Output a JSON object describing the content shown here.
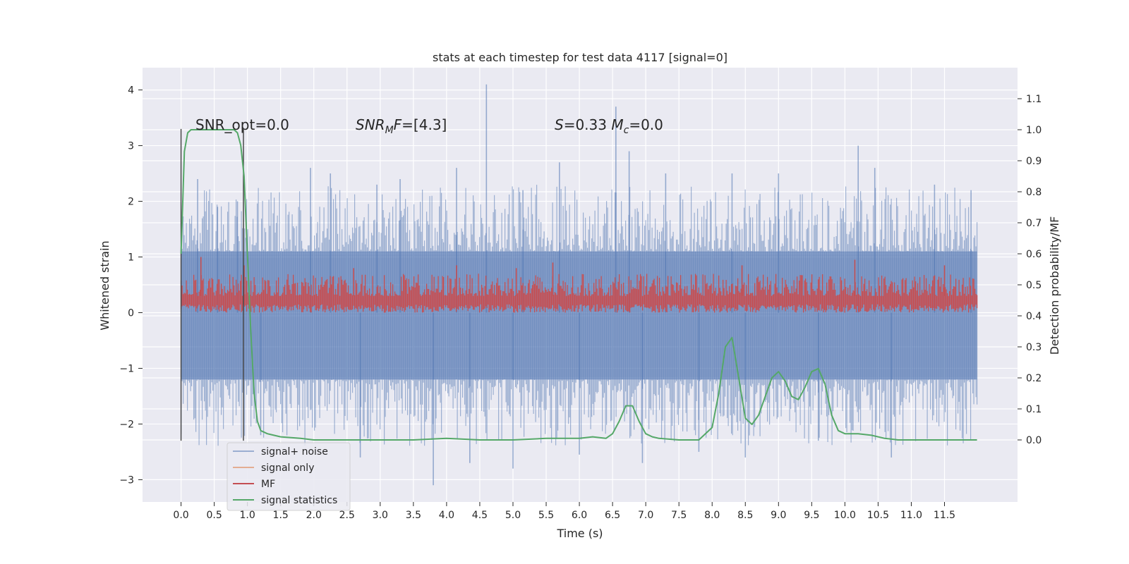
{
  "chart_data": {
    "type": "line",
    "title": "stats at each timestep for test data 4117 [signal=0]",
    "xlabel": "Time (s)",
    "ylabel": "Whitened strain",
    "ylabel_right": "Detection probability/MF",
    "xlim": [
      -0.58,
      12.6
    ],
    "ylim": [
      -3.4,
      4.4
    ],
    "ylim_right": [
      -0.2,
      1.2
    ],
    "x_ticks": [
      "0.0",
      "0.5",
      "1.0",
      "1.5",
      "2.0",
      "2.5",
      "3.0",
      "3.5",
      "4.0",
      "4.5",
      "5.0",
      "5.5",
      "6.0",
      "6.5",
      "7.0",
      "7.5",
      "8.0",
      "8.5",
      "9.0",
      "9.5",
      "10.0",
      "10.5",
      "11.0",
      "11.5"
    ],
    "y_ticks": [
      "−3",
      "−2",
      "−1",
      "0",
      "1",
      "2",
      "3",
      "4"
    ],
    "y_right_ticks": [
      "0.0",
      "0.1",
      "0.2",
      "0.3",
      "0.4",
      "0.5",
      "0.6",
      "0.7",
      "0.8",
      "0.9",
      "1.0",
      "1.1"
    ],
    "grid": true,
    "legend_position": "lower-left",
    "legend": [
      {
        "name": "signal+ noise",
        "color": "#4c72b0"
      },
      {
        "name": "signal only",
        "color": "#dd8452"
      },
      {
        "name": "MF",
        "color": "#c44e52"
      },
      {
        "name": "signal statistics",
        "color": "#55a868"
      }
    ],
    "annotations": [
      {
        "text": "SNR_opt=0.0",
        "x": 0.2,
        "y": 3.35
      },
      {
        "text": "SNR_MF=[4.3]",
        "x": 2.6,
        "y": 3.35
      },
      {
        "text": "S=0.33   M_c=0.0",
        "x": 5.6,
        "y": 3.35
      }
    ],
    "vertical_lines": [
      0.0,
      0.94
    ],
    "noise_band": {
      "x_range": [
        0.0,
        11.99
      ],
      "core": [
        -1.2,
        1.1
      ]
    },
    "noise_spikes": [
      {
        "x": 0.25,
        "y": 2.4
      },
      {
        "x": 0.55,
        "y": 1.9
      },
      {
        "x": 0.85,
        "y": 2.0
      },
      {
        "x": 1.2,
        "y": -2.2
      },
      {
        "x": 1.95,
        "y": 2.6
      },
      {
        "x": 2.25,
        "y": 2.5
      },
      {
        "x": 2.7,
        "y": -2.6
      },
      {
        "x": 2.95,
        "y": 2.3
      },
      {
        "x": 3.3,
        "y": 2.4
      },
      {
        "x": 3.8,
        "y": -3.1
      },
      {
        "x": 4.15,
        "y": 2.6
      },
      {
        "x": 4.35,
        "y": -2.7
      },
      {
        "x": 4.6,
        "y": 4.1
      },
      {
        "x": 5.0,
        "y": -2.8
      },
      {
        "x": 5.15,
        "y": 2.2
      },
      {
        "x": 5.7,
        "y": 2.7
      },
      {
        "x": 6.0,
        "y": -2.55
      },
      {
        "x": 6.55,
        "y": 3.7
      },
      {
        "x": 6.75,
        "y": 2.9
      },
      {
        "x": 6.95,
        "y": -2.7
      },
      {
        "x": 7.3,
        "y": 2.5
      },
      {
        "x": 7.8,
        "y": -2.5
      },
      {
        "x": 8.3,
        "y": 2.5
      },
      {
        "x": 8.5,
        "y": -2.6
      },
      {
        "x": 9.0,
        "y": 2.5
      },
      {
        "x": 9.6,
        "y": -2.3
      },
      {
        "x": 10.2,
        "y": 3.0
      },
      {
        "x": 10.45,
        "y": 2.6
      },
      {
        "x": 10.7,
        "y": -2.6
      },
      {
        "x": 11.35,
        "y": 2.3
      },
      {
        "x": 11.9,
        "y": 2.2
      }
    ],
    "mf_band": {
      "x_range": [
        0.0,
        11.99
      ],
      "range": [
        0.0,
        0.55
      ]
    },
    "mf_spikes": [
      {
        "x": 0.3,
        "y": 1.0
      },
      {
        "x": 0.95,
        "y": 0.85
      },
      {
        "x": 2.6,
        "y": 0.8
      },
      {
        "x": 4.15,
        "y": 0.85
      },
      {
        "x": 5.05,
        "y": 0.8
      },
      {
        "x": 5.6,
        "y": 0.9
      },
      {
        "x": 8.45,
        "y": 0.85
      },
      {
        "x": 10.15,
        "y": 0.95
      },
      {
        "x": 11.5,
        "y": 0.85
      }
    ],
    "signal_statistics": {
      "x": [
        0.0,
        0.05,
        0.1,
        0.15,
        0.2,
        0.3,
        0.5,
        0.7,
        0.8,
        0.85,
        0.9,
        0.95,
        1.0,
        1.05,
        1.1,
        1.15,
        1.2,
        1.3,
        1.5,
        1.8,
        2.0,
        2.5,
        3.0,
        3.5,
        4.0,
        4.5,
        5.0,
        5.5,
        6.0,
        6.2,
        6.4,
        6.5,
        6.6,
        6.7,
        6.8,
        6.9,
        7.0,
        7.1,
        7.2,
        7.5,
        7.8,
        8.0,
        8.1,
        8.2,
        8.3,
        8.4,
        8.5,
        8.6,
        8.7,
        8.8,
        8.9,
        9.0,
        9.1,
        9.2,
        9.3,
        9.4,
        9.5,
        9.6,
        9.7,
        9.8,
        9.9,
        10.0,
        10.2,
        10.4,
        10.6,
        10.8,
        11.0,
        11.5,
        11.99
      ],
      "y": [
        0.6,
        0.93,
        0.99,
        1.0,
        1.0,
        1.0,
        1.0,
        1.0,
        1.0,
        0.99,
        0.95,
        0.85,
        0.6,
        0.35,
        0.15,
        0.06,
        0.03,
        0.02,
        0.01,
        0.005,
        0.0,
        0.0,
        0.0,
        0.0,
        0.005,
        0.0,
        0.0,
        0.005,
        0.005,
        0.01,
        0.005,
        0.02,
        0.06,
        0.11,
        0.11,
        0.06,
        0.02,
        0.01,
        0.005,
        0.0,
        0.0,
        0.04,
        0.15,
        0.3,
        0.33,
        0.2,
        0.07,
        0.05,
        0.08,
        0.14,
        0.2,
        0.22,
        0.19,
        0.14,
        0.13,
        0.17,
        0.22,
        0.23,
        0.18,
        0.08,
        0.03,
        0.02,
        0.02,
        0.015,
        0.005,
        0.0,
        0.0,
        0.0,
        0.0
      ]
    }
  }
}
